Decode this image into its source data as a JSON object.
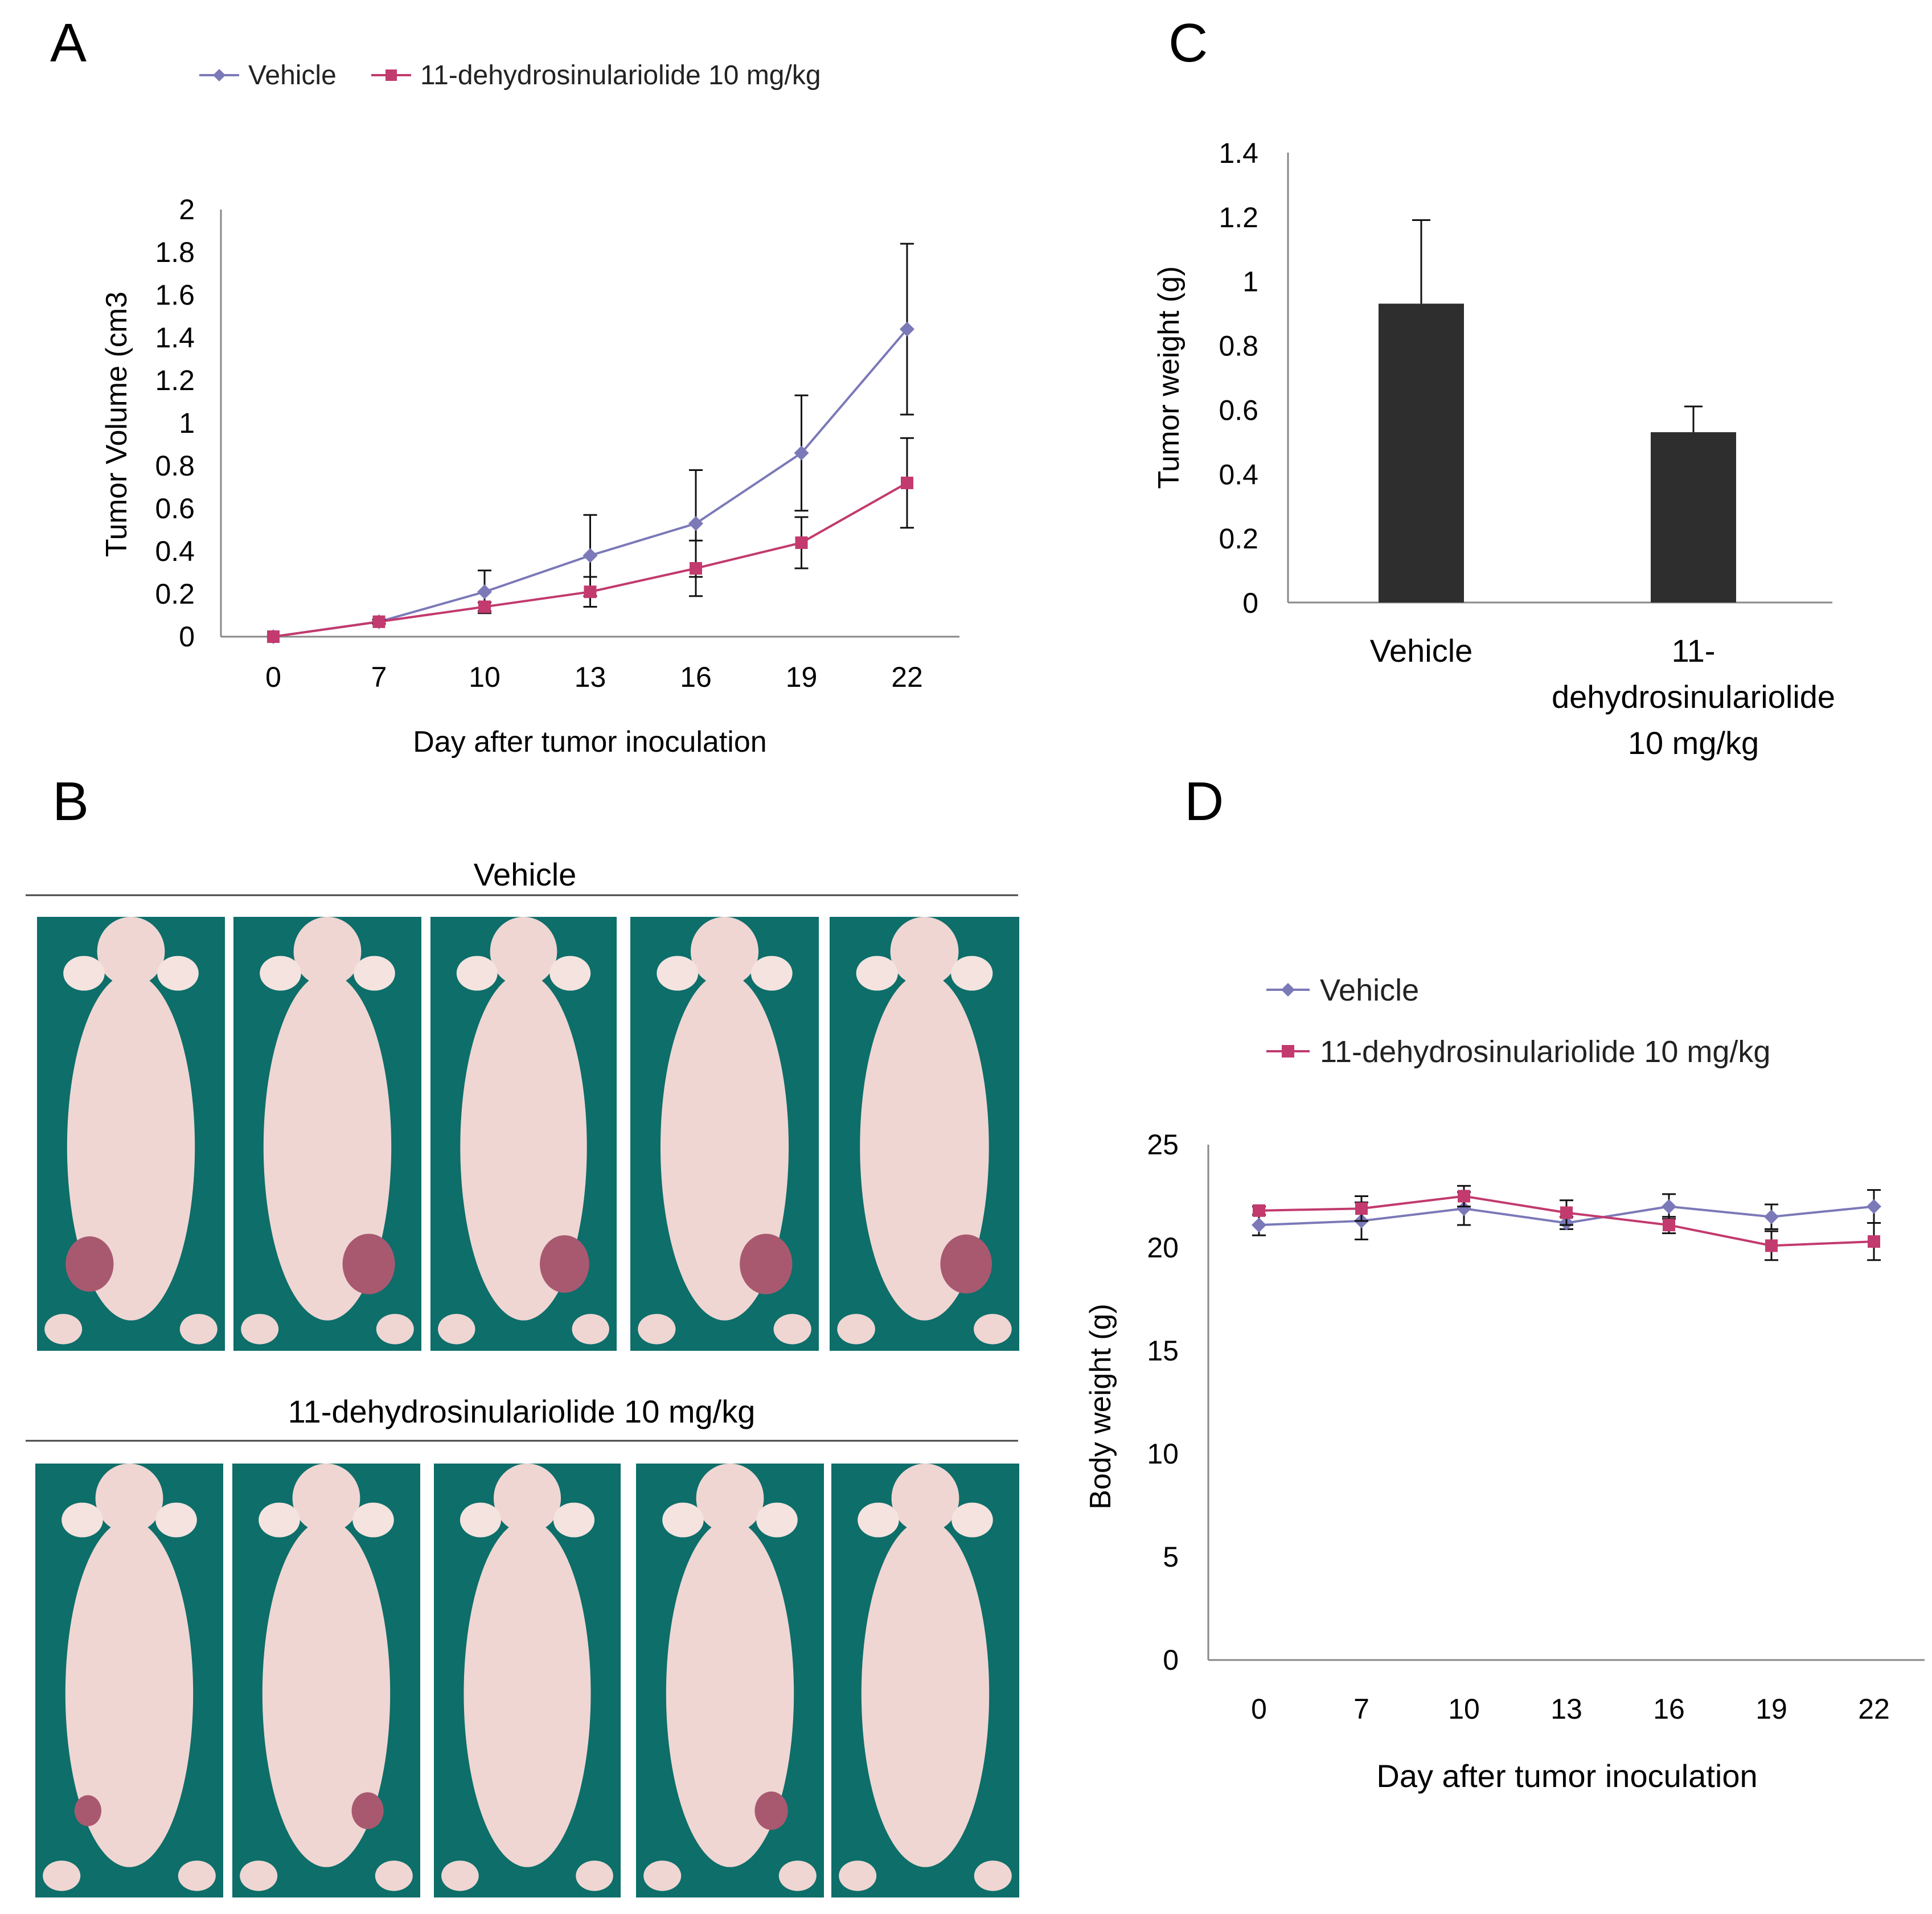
{
  "panel_labels": [
    "A",
    "B",
    "C",
    "D"
  ],
  "colors": {
    "vehicle": "#7b79b8",
    "treated": "#c23a6e",
    "bar": "#2e2e2e",
    "background": "#0d6e6a",
    "mouse": "#efd6d2"
  },
  "chart_data": [
    {
      "id": "A",
      "type": "line",
      "title": "",
      "xlabel": "Day after tumor inoculation",
      "ylabel": "Tumor Volume (cm3",
      "categories": [
        "0",
        "7",
        "10",
        "13",
        "16",
        "19",
        "22"
      ],
      "ylim": [
        0,
        2
      ],
      "yticks": [
        "0",
        "0.2",
        "0.4",
        "0.6",
        "0.8",
        "1",
        "1.2",
        "1.4",
        "1.6",
        "1.8",
        "2"
      ],
      "legend_position": "top",
      "series": [
        {
          "name": "Vehicle",
          "marker": "diamond",
          "values": [
            0.0,
            0.07,
            0.21,
            0.38,
            0.53,
            0.86,
            1.44
          ],
          "errors": [
            0.0,
            0.01,
            0.1,
            0.19,
            0.25,
            0.27,
            0.4
          ]
        },
        {
          "name": "11-dehydrosinulariolide 10 mg/kg",
          "marker": "square",
          "values": [
            0.0,
            0.07,
            0.14,
            0.21,
            0.32,
            0.44,
            0.72
          ],
          "errors": [
            0.0,
            0.01,
            0.02,
            0.07,
            0.13,
            0.12,
            0.21
          ]
        }
      ]
    },
    {
      "id": "C",
      "type": "bar",
      "title": "",
      "xlabel": "",
      "ylabel": "Tumor weight (g)",
      "categories": [
        "Vehicle",
        "11-dehydrosinulariolide 10 mg/kg"
      ],
      "category_lines": [
        [
          "Vehicle"
        ],
        [
          "11-",
          "dehydrosinulariolide",
          "10 mg/kg"
        ]
      ],
      "values": [
        0.93,
        0.53
      ],
      "errors": [
        0.26,
        0.08
      ],
      "ylim": [
        0,
        1.4
      ],
      "yticks": [
        "0",
        "0.2",
        "0.4",
        "0.6",
        "0.8",
        "1",
        "1.2",
        "1.4"
      ]
    },
    {
      "id": "D",
      "type": "line",
      "title": "",
      "xlabel": "Day after tumor inoculation",
      "ylabel": "Body weight (g)",
      "categories": [
        "0",
        "7",
        "10",
        "13",
        "16",
        "19",
        "22"
      ],
      "ylim": [
        0,
        25
      ],
      "yticks": [
        "0",
        "5",
        "10",
        "15",
        "20",
        "25"
      ],
      "legend_position": "top",
      "series": [
        {
          "name": "Vehicle",
          "marker": "diamond",
          "values": [
            21.1,
            21.3,
            21.9,
            21.2,
            22.0,
            21.5,
            22.0
          ],
          "errors": [
            0.5,
            0.9,
            0.8,
            0.3,
            0.6,
            0.6,
            0.8
          ]
        },
        {
          "name": "11-dehydrosinulariolide 10 mg/kg",
          "marker": "square",
          "values": [
            21.8,
            21.9,
            22.5,
            21.7,
            21.1,
            20.1,
            20.3
          ],
          "errors": [
            0.2,
            0.6,
            0.5,
            0.6,
            0.4,
            0.7,
            0.9
          ]
        }
      ]
    }
  ],
  "panel_b": {
    "group_titles": [
      "Vehicle",
      "11-dehydrosinulariolide  10 mg/kg"
    ],
    "tumor_size": [
      [
        0.75,
        0.82,
        0.78,
        0.82,
        0.8
      ],
      [
        0.42,
        0.5,
        0.0,
        0.52,
        0.0
      ]
    ]
  }
}
